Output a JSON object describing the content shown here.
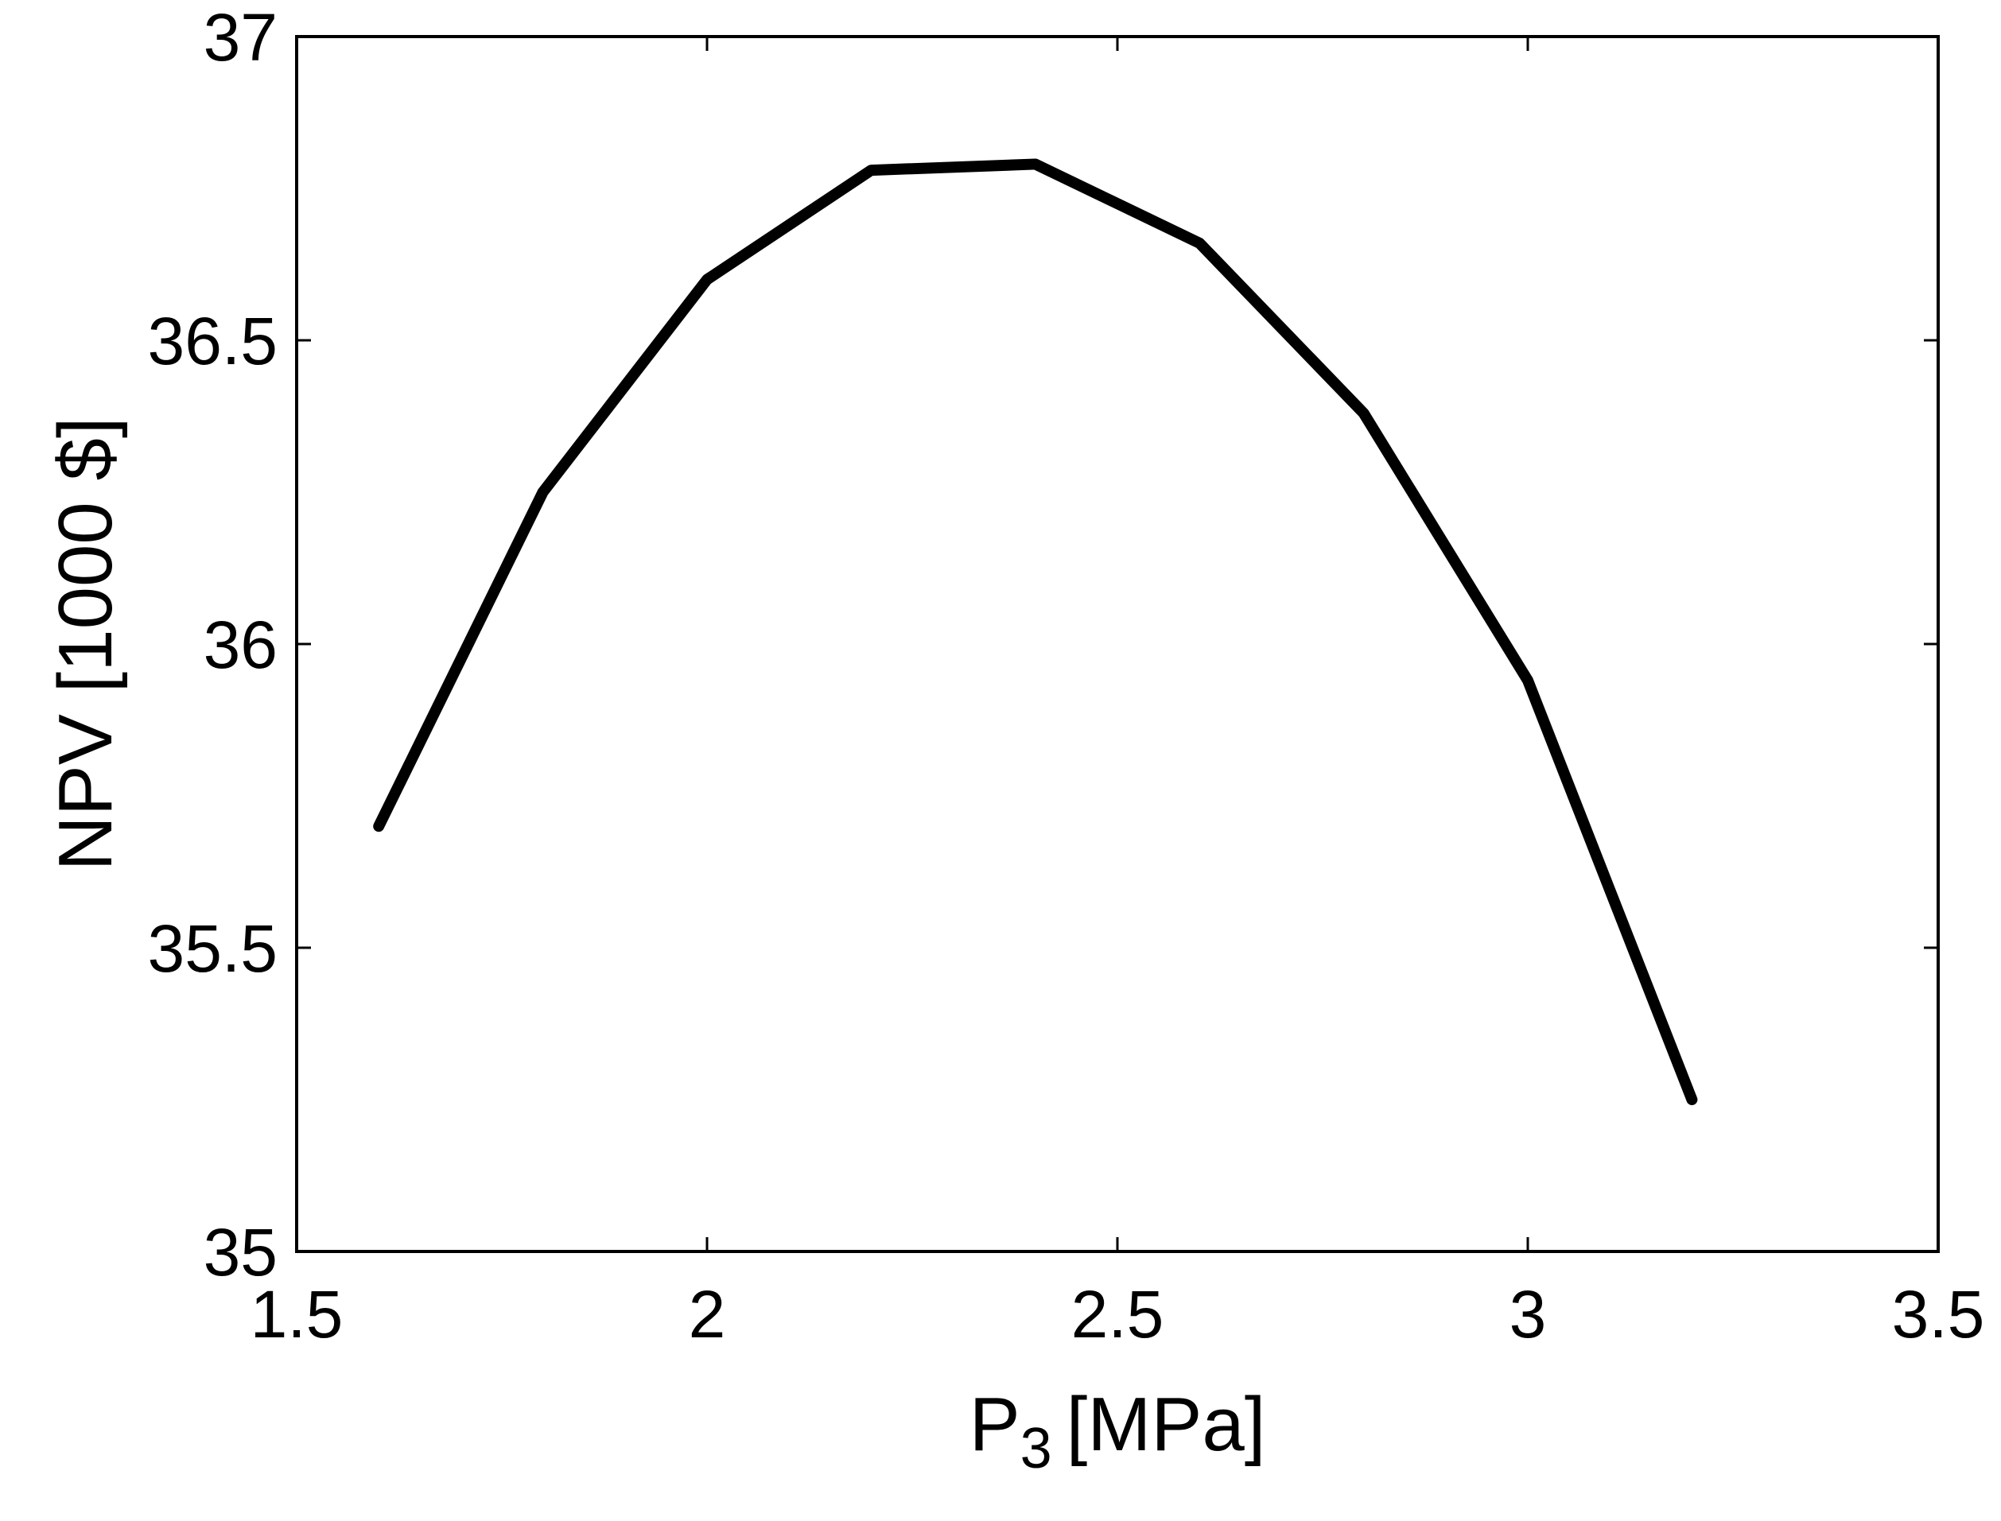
{
  "chart_data": {
    "type": "line",
    "xlabel": "P",
    "xlabel_subscript": "3",
    "xlabel_unit": "[MPa]",
    "ylabel": "NPV [1000 $]",
    "xlim": [
      1.5,
      3.5
    ],
    "ylim": [
      35,
      37
    ],
    "xticks": [
      "1.5",
      "2",
      "2.5",
      "3",
      "3.5"
    ],
    "yticks": [
      "35",
      "35.5",
      "36",
      "36.5",
      "37"
    ],
    "grid": false,
    "series": [
      {
        "color": "#000000",
        "x": [
          1.6,
          1.8,
          2.0,
          2.2,
          2.4,
          2.6,
          2.8,
          3.0,
          3.2
        ],
        "y": [
          35.7,
          36.25,
          36.6,
          36.78,
          36.79,
          36.66,
          36.38,
          35.94,
          35.25
        ]
      }
    ]
  }
}
